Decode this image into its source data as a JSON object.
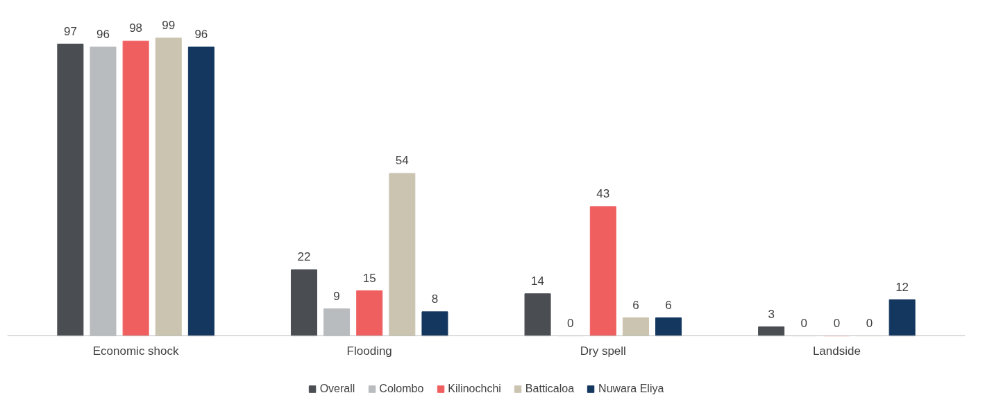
{
  "chart_data": {
    "type": "bar",
    "categories": [
      "Economic shock",
      "Flooding",
      "Dry spell",
      "Landside"
    ],
    "series": [
      {
        "name": "Overall",
        "color": "#4a4e52",
        "values": [
          97,
          22,
          14,
          3
        ]
      },
      {
        "name": "Colombo",
        "color": "#b9bcbf",
        "values": [
          96,
          9,
          0,
          0
        ]
      },
      {
        "name": "Kilinochchi",
        "color": "#f05f60",
        "values": [
          98,
          15,
          43,
          0
        ]
      },
      {
        "name": "Batticaloa",
        "color": "#cbc4b0",
        "values": [
          99,
          54,
          6,
          0
        ]
      },
      {
        "name": "Nuwara Eliya",
        "color": "#14375f",
        "values": [
          96,
          8,
          6,
          12
        ]
      }
    ],
    "data_labels": true,
    "legend": "bottom",
    "grid": false,
    "tick_labels": "x"
  }
}
